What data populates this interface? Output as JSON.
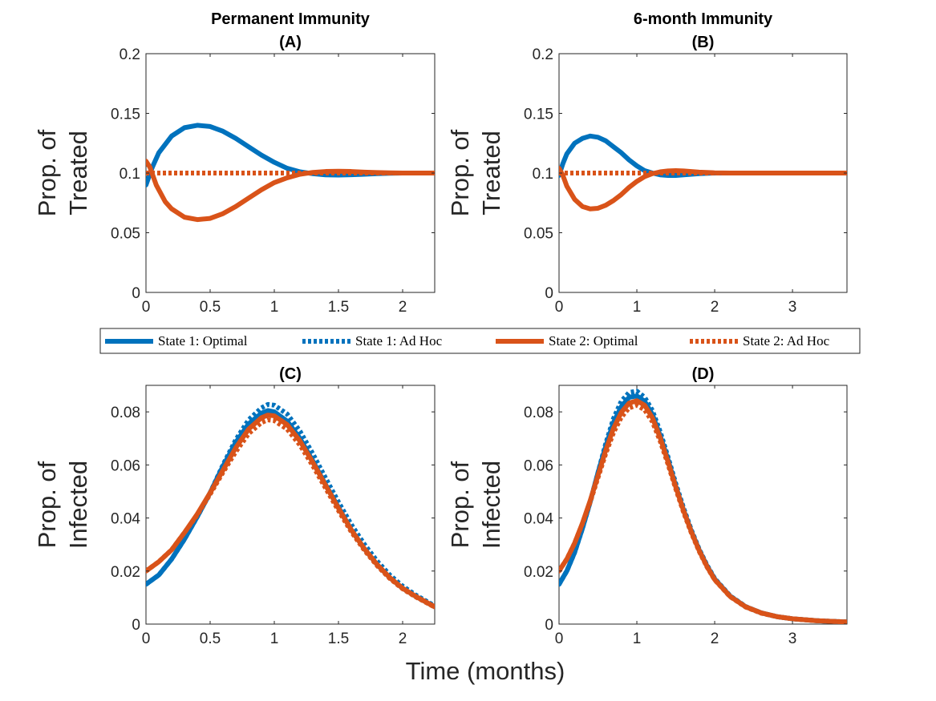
{
  "colors": {
    "state1": "#0072BD",
    "state2": "#D95319"
  },
  "figure": {
    "xlabel": "Time (months)"
  },
  "legend": {
    "placement": "between rows",
    "entries": [
      {
        "label": "State 1:  Optimal",
        "color": "#0072BD",
        "style": "solid"
      },
      {
        "label": "State 1:  Ad Hoc",
        "color": "#0072BD",
        "style": "dotted"
      },
      {
        "label": "State 2:  Optimal",
        "color": "#D95319",
        "style": "solid"
      },
      {
        "label": "State 2:  Ad Hoc",
        "color": "#D95319",
        "style": "dotted"
      }
    ]
  },
  "chart_data": [
    {
      "type": "line",
      "title": "Permanent Immunity",
      "subtitle": "(A)",
      "ylabel": [
        "Prop. of",
        "Treated"
      ],
      "xlim": [
        0,
        2.25
      ],
      "ylim": [
        0,
        0.2
      ],
      "xticks": [
        0,
        0.5,
        1,
        1.5,
        2
      ],
      "xticklabels": [
        "0",
        "0.5",
        "1",
        "1.5",
        "2"
      ],
      "yticks": [
        0,
        0.05,
        0.1,
        0.15,
        0.2
      ],
      "yticklabels": [
        "0",
        "0.05",
        "0.1",
        "0.15",
        "0.2"
      ],
      "series": [
        {
          "name": "State 1:  Optimal",
          "style": "solid",
          "color": "#0072BD",
          "x": [
            0,
            0.05,
            0.1,
            0.2,
            0.3,
            0.4,
            0.5,
            0.6,
            0.7,
            0.8,
            0.9,
            1.0,
            1.1,
            1.2,
            1.3,
            1.4,
            1.5,
            1.6,
            1.7,
            1.8,
            1.9,
            2.0,
            2.1,
            2.25
          ],
          "y": [
            0.09,
            0.105,
            0.117,
            0.131,
            0.138,
            0.14,
            0.139,
            0.135,
            0.129,
            0.122,
            0.115,
            0.109,
            0.104,
            0.101,
            0.0995,
            0.0985,
            0.0983,
            0.0986,
            0.099,
            0.0995,
            0.0998,
            0.1,
            0.1,
            0.1
          ]
        },
        {
          "name": "State 1:  Ad Hoc",
          "style": "dotted",
          "color": "#0072BD",
          "x": [
            0,
            2.25
          ],
          "y": [
            0.1,
            0.1
          ]
        },
        {
          "name": "State 2:  Optimal",
          "style": "solid",
          "color": "#D95319",
          "x": [
            0,
            0.03,
            0.08,
            0.15,
            0.2,
            0.3,
            0.4,
            0.5,
            0.6,
            0.7,
            0.8,
            0.9,
            1.0,
            1.1,
            1.2,
            1.3,
            1.4,
            1.5,
            1.6,
            1.7,
            1.8,
            1.9,
            2.0,
            2.1,
            2.25
          ],
          "y": [
            0.11,
            0.105,
            0.09,
            0.076,
            0.07,
            0.063,
            0.061,
            0.062,
            0.066,
            0.072,
            0.079,
            0.086,
            0.092,
            0.096,
            0.099,
            0.1005,
            0.1013,
            0.1015,
            0.1013,
            0.1008,
            0.1004,
            0.1002,
            0.1,
            0.1,
            0.1
          ]
        },
        {
          "name": "State 2:  Ad Hoc",
          "style": "dotted",
          "color": "#D95319",
          "x": [
            0,
            2.25
          ],
          "y": [
            0.1,
            0.1
          ]
        }
      ]
    },
    {
      "type": "line",
      "title": "6-month Immunity",
      "subtitle": "(B)",
      "ylabel": [
        "Prop. of",
        "Treated"
      ],
      "xlim": [
        0,
        3.7
      ],
      "ylim": [
        0,
        0.2
      ],
      "xticks": [
        0,
        1,
        2,
        3
      ],
      "xticklabels": [
        "0",
        "1",
        "2",
        "3"
      ],
      "yticks": [
        0,
        0.05,
        0.1,
        0.15,
        0.2
      ],
      "yticklabels": [
        "0",
        "0.05",
        "0.1",
        "0.15",
        "0.2"
      ],
      "series": [
        {
          "name": "State 1:  Optimal",
          "style": "solid",
          "color": "#0072BD",
          "x": [
            0,
            0.05,
            0.1,
            0.2,
            0.3,
            0.4,
            0.5,
            0.6,
            0.7,
            0.8,
            0.9,
            1.0,
            1.1,
            1.2,
            1.3,
            1.4,
            1.5,
            1.6,
            1.7,
            1.8,
            2.0,
            2.2,
            2.5,
            3.0,
            3.7
          ],
          "y": [
            0.098,
            0.108,
            0.116,
            0.125,
            0.129,
            0.131,
            0.13,
            0.127,
            0.122,
            0.117,
            0.111,
            0.106,
            0.102,
            0.1,
            0.0985,
            0.098,
            0.098,
            0.0985,
            0.099,
            0.0995,
            0.1,
            0.1,
            0.1,
            0.1,
            0.1
          ]
        },
        {
          "name": "State 1:  Ad Hoc",
          "style": "dotted",
          "color": "#0072BD",
          "x": [
            0,
            3.7
          ],
          "y": [
            0.1,
            0.1
          ]
        },
        {
          "name": "State 2:  Optimal",
          "style": "solid",
          "color": "#D95319",
          "x": [
            0,
            0.05,
            0.1,
            0.2,
            0.3,
            0.4,
            0.5,
            0.6,
            0.7,
            0.8,
            0.9,
            1.0,
            1.1,
            1.2,
            1.3,
            1.4,
            1.5,
            1.6,
            1.7,
            1.8,
            2.0,
            2.2,
            2.5,
            3.0,
            3.7
          ],
          "y": [
            0.104,
            0.098,
            0.089,
            0.078,
            0.072,
            0.07,
            0.0705,
            0.073,
            0.077,
            0.082,
            0.088,
            0.093,
            0.097,
            0.0995,
            0.101,
            0.1018,
            0.102,
            0.1018,
            0.1013,
            0.1008,
            0.1002,
            0.1,
            0.1,
            0.1,
            0.1
          ]
        },
        {
          "name": "State 2:  Ad Hoc",
          "style": "dotted",
          "color": "#D95319",
          "x": [
            0,
            3.7
          ],
          "y": [
            0.1,
            0.1
          ]
        }
      ]
    },
    {
      "type": "line",
      "title": "(C)",
      "ylabel": [
        "Prop. of",
        "Infected"
      ],
      "xlim": [
        0,
        2.25
      ],
      "ylim": [
        0,
        0.09
      ],
      "xticks": [
        0,
        0.5,
        1,
        1.5,
        2
      ],
      "xticklabels": [
        "0",
        "0.5",
        "1",
        "1.5",
        "2"
      ],
      "yticks": [
        0,
        0.02,
        0.04,
        0.06,
        0.08
      ],
      "yticklabels": [
        "0",
        "0.02",
        "0.04",
        "0.06",
        "0.08"
      ],
      "series": [
        {
          "name": "State 1:  Optimal",
          "style": "solid",
          "color": "#0072BD",
          "x": [
            0,
            0.1,
            0.2,
            0.3,
            0.4,
            0.5,
            0.6,
            0.7,
            0.8,
            0.9,
            0.95,
            1.0,
            1.1,
            1.2,
            1.3,
            1.4,
            1.5,
            1.6,
            1.7,
            1.8,
            1.9,
            2.0,
            2.1,
            2.25
          ],
          "y": [
            0.015,
            0.0185,
            0.0245,
            0.032,
            0.0405,
            0.0495,
            0.0595,
            0.0685,
            0.0755,
            0.0795,
            0.0805,
            0.08,
            0.0765,
            0.07,
            0.0615,
            0.0525,
            0.044,
            0.0355,
            0.0285,
            0.0225,
            0.0175,
            0.0135,
            0.0105,
            0.0065
          ]
        },
        {
          "name": "State 1:  Ad Hoc",
          "style": "dotted",
          "color": "#0072BD",
          "x": [
            0,
            0.1,
            0.2,
            0.3,
            0.4,
            0.5,
            0.6,
            0.7,
            0.8,
            0.9,
            0.95,
            1.0,
            1.1,
            1.2,
            1.3,
            1.4,
            1.5,
            1.6,
            1.7,
            1.8,
            1.9,
            2.0,
            2.1,
            2.25
          ],
          "y": [
            0.015,
            0.0185,
            0.0245,
            0.032,
            0.0405,
            0.0495,
            0.06,
            0.0695,
            0.077,
            0.0815,
            0.0828,
            0.0825,
            0.0792,
            0.0727,
            0.0642,
            0.055,
            0.046,
            0.0375,
            0.0302,
            0.0238,
            0.0185,
            0.0143,
            0.011,
            0.0068
          ]
        },
        {
          "name": "State 2:  Optimal",
          "style": "solid",
          "color": "#D95319",
          "x": [
            0,
            0.1,
            0.2,
            0.3,
            0.4,
            0.5,
            0.6,
            0.7,
            0.8,
            0.9,
            0.95,
            1.0,
            1.1,
            1.2,
            1.3,
            1.4,
            1.5,
            1.6,
            1.7,
            1.8,
            1.9,
            2.0,
            2.1,
            2.25
          ],
          "y": [
            0.02,
            0.0235,
            0.028,
            0.0345,
            0.0415,
            0.0495,
            0.058,
            0.0665,
            0.0735,
            0.0778,
            0.0788,
            0.0785,
            0.0752,
            0.069,
            0.061,
            0.0523,
            0.0437,
            0.0355,
            0.0285,
            0.0225,
            0.0175,
            0.0135,
            0.0105,
            0.0065
          ]
        },
        {
          "name": "State 2:  Ad Hoc",
          "style": "dotted",
          "color": "#D95319",
          "x": [
            0,
            0.1,
            0.2,
            0.3,
            0.4,
            0.5,
            0.6,
            0.7,
            0.8,
            0.9,
            0.95,
            1.0,
            1.1,
            1.2,
            1.3,
            1.4,
            1.5,
            1.6,
            1.7,
            1.8,
            1.9,
            2.0,
            2.1,
            2.25
          ],
          "y": [
            0.02,
            0.0235,
            0.028,
            0.0345,
            0.0412,
            0.049,
            0.0572,
            0.065,
            0.0718,
            0.076,
            0.077,
            0.0767,
            0.0735,
            0.0675,
            0.0597,
            0.0512,
            0.0428,
            0.0348,
            0.028,
            0.0221,
            0.0172,
            0.0133,
            0.0103,
            0.0064
          ]
        }
      ]
    },
    {
      "type": "line",
      "title": "(D)",
      "ylabel": [
        "Prop. of",
        "Infected"
      ],
      "xlim": [
        0,
        3.7
      ],
      "ylim": [
        0,
        0.09
      ],
      "xticks": [
        0,
        1,
        2,
        3
      ],
      "xticklabels": [
        "0",
        "1",
        "2",
        "3"
      ],
      "yticks": [
        0,
        0.02,
        0.04,
        0.06,
        0.08
      ],
      "yticklabels": [
        "0",
        "0.02",
        "0.04",
        "0.06",
        "0.08"
      ],
      "series": [
        {
          "name": "State 1:  Optimal",
          "style": "solid",
          "color": "#0072BD",
          "x": [
            0,
            0.1,
            0.2,
            0.3,
            0.4,
            0.5,
            0.6,
            0.7,
            0.8,
            0.9,
            1.0,
            1.1,
            1.2,
            1.3,
            1.4,
            1.5,
            1.6,
            1.7,
            1.8,
            1.9,
            2.0,
            2.2,
            2.4,
            2.6,
            2.8,
            3.0,
            3.3,
            3.7
          ],
          "y": [
            0.015,
            0.02,
            0.027,
            0.036,
            0.046,
            0.057,
            0.067,
            0.076,
            0.082,
            0.0855,
            0.086,
            0.084,
            0.079,
            0.071,
            0.062,
            0.052,
            0.043,
            0.035,
            0.028,
            0.022,
            0.017,
            0.0105,
            0.0065,
            0.0042,
            0.0028,
            0.002,
            0.0013,
            0.0008
          ]
        },
        {
          "name": "State 1:  Ad Hoc",
          "style": "dotted",
          "color": "#0072BD",
          "x": [
            0,
            0.1,
            0.2,
            0.3,
            0.4,
            0.5,
            0.6,
            0.7,
            0.8,
            0.9,
            1.0,
            1.1,
            1.2,
            1.3,
            1.4,
            1.5,
            1.6,
            1.7,
            1.8,
            1.9,
            2.0,
            2.2,
            2.4,
            2.6,
            2.8,
            3.0,
            3.3,
            3.7
          ],
          "y": [
            0.015,
            0.02,
            0.027,
            0.036,
            0.046,
            0.057,
            0.068,
            0.0775,
            0.084,
            0.0873,
            0.0878,
            0.0855,
            0.0805,
            0.0725,
            0.063,
            0.053,
            0.0438,
            0.0355,
            0.0283,
            0.0223,
            0.0172,
            0.0106,
            0.0066,
            0.0042,
            0.0028,
            0.002,
            0.0013,
            0.0008
          ]
        },
        {
          "name": "State 2:  Optimal",
          "style": "solid",
          "color": "#D95319",
          "x": [
            0,
            0.1,
            0.2,
            0.3,
            0.4,
            0.5,
            0.6,
            0.7,
            0.8,
            0.9,
            1.0,
            1.1,
            1.2,
            1.3,
            1.4,
            1.5,
            1.6,
            1.7,
            1.8,
            1.9,
            2.0,
            2.2,
            2.4,
            2.6,
            2.8,
            3.0,
            3.3,
            3.7
          ],
          "y": [
            0.02,
            0.0245,
            0.0305,
            0.038,
            0.0465,
            0.056,
            0.0655,
            0.0738,
            0.0798,
            0.0833,
            0.0842,
            0.0825,
            0.0778,
            0.0702,
            0.0612,
            0.0517,
            0.0428,
            0.0348,
            0.0278,
            0.0218,
            0.0168,
            0.0104,
            0.0065,
            0.0042,
            0.0028,
            0.002,
            0.0013,
            0.0008
          ]
        },
        {
          "name": "State 2:  Ad Hoc",
          "style": "dotted",
          "color": "#D95319",
          "x": [
            0,
            0.1,
            0.2,
            0.3,
            0.4,
            0.5,
            0.6,
            0.7,
            0.8,
            0.9,
            1.0,
            1.1,
            1.2,
            1.3,
            1.4,
            1.5,
            1.6,
            1.7,
            1.8,
            1.9,
            2.0,
            2.2,
            2.4,
            2.6,
            2.8,
            3.0,
            3.3,
            3.7
          ],
          "y": [
            0.02,
            0.0245,
            0.0305,
            0.0378,
            0.046,
            0.0552,
            0.0643,
            0.0722,
            0.078,
            0.0815,
            0.0825,
            0.0808,
            0.0763,
            0.069,
            0.0603,
            0.051,
            0.0422,
            0.0344,
            0.0275,
            0.0216,
            0.0167,
            0.0103,
            0.0064,
            0.0041,
            0.0028,
            0.002,
            0.0013,
            0.0008
          ]
        }
      ]
    }
  ]
}
